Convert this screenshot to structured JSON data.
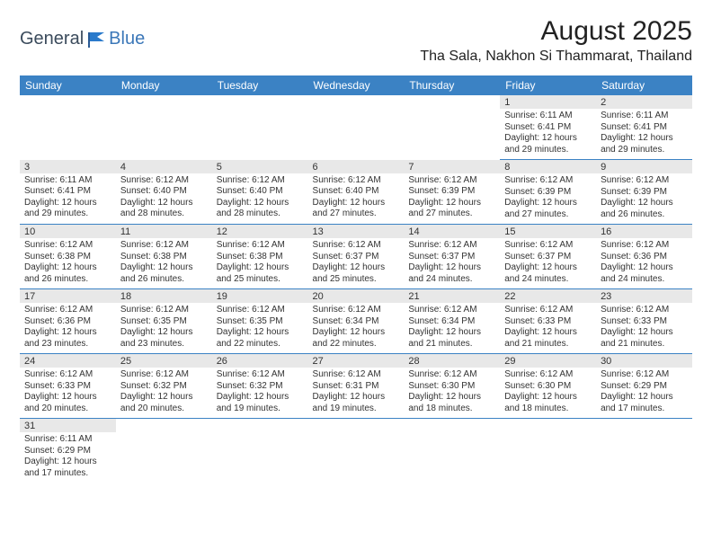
{
  "logo": {
    "part1": "General",
    "part2": "Blue"
  },
  "title": "August 2025",
  "location": "Tha Sala, Nakhon Si Thammarat, Thailand",
  "colors": {
    "header_bg": "#3b82c4",
    "header_text": "#ffffff",
    "daynum_bg": "#e8e8e8",
    "row_border": "#3b82c4",
    "text": "#333333",
    "logo_general": "#3b4b5c",
    "logo_blue": "#3b77b8"
  },
  "dayNames": [
    "Sunday",
    "Monday",
    "Tuesday",
    "Wednesday",
    "Thursday",
    "Friday",
    "Saturday"
  ],
  "weeks": [
    [
      null,
      null,
      null,
      null,
      null,
      {
        "n": "1",
        "sr": "6:11 AM",
        "ss": "6:41 PM",
        "dl": "12 hours and 29 minutes."
      },
      {
        "n": "2",
        "sr": "6:11 AM",
        "ss": "6:41 PM",
        "dl": "12 hours and 29 minutes."
      }
    ],
    [
      {
        "n": "3",
        "sr": "6:11 AM",
        "ss": "6:41 PM",
        "dl": "12 hours and 29 minutes."
      },
      {
        "n": "4",
        "sr": "6:12 AM",
        "ss": "6:40 PM",
        "dl": "12 hours and 28 minutes."
      },
      {
        "n": "5",
        "sr": "6:12 AM",
        "ss": "6:40 PM",
        "dl": "12 hours and 28 minutes."
      },
      {
        "n": "6",
        "sr": "6:12 AM",
        "ss": "6:40 PM",
        "dl": "12 hours and 27 minutes."
      },
      {
        "n": "7",
        "sr": "6:12 AM",
        "ss": "6:39 PM",
        "dl": "12 hours and 27 minutes."
      },
      {
        "n": "8",
        "sr": "6:12 AM",
        "ss": "6:39 PM",
        "dl": "12 hours and 27 minutes."
      },
      {
        "n": "9",
        "sr": "6:12 AM",
        "ss": "6:39 PM",
        "dl": "12 hours and 26 minutes."
      }
    ],
    [
      {
        "n": "10",
        "sr": "6:12 AM",
        "ss": "6:38 PM",
        "dl": "12 hours and 26 minutes."
      },
      {
        "n": "11",
        "sr": "6:12 AM",
        "ss": "6:38 PM",
        "dl": "12 hours and 26 minutes."
      },
      {
        "n": "12",
        "sr": "6:12 AM",
        "ss": "6:38 PM",
        "dl": "12 hours and 25 minutes."
      },
      {
        "n": "13",
        "sr": "6:12 AM",
        "ss": "6:37 PM",
        "dl": "12 hours and 25 minutes."
      },
      {
        "n": "14",
        "sr": "6:12 AM",
        "ss": "6:37 PM",
        "dl": "12 hours and 24 minutes."
      },
      {
        "n": "15",
        "sr": "6:12 AM",
        "ss": "6:37 PM",
        "dl": "12 hours and 24 minutes."
      },
      {
        "n": "16",
        "sr": "6:12 AM",
        "ss": "6:36 PM",
        "dl": "12 hours and 24 minutes."
      }
    ],
    [
      {
        "n": "17",
        "sr": "6:12 AM",
        "ss": "6:36 PM",
        "dl": "12 hours and 23 minutes."
      },
      {
        "n": "18",
        "sr": "6:12 AM",
        "ss": "6:35 PM",
        "dl": "12 hours and 23 minutes."
      },
      {
        "n": "19",
        "sr": "6:12 AM",
        "ss": "6:35 PM",
        "dl": "12 hours and 22 minutes."
      },
      {
        "n": "20",
        "sr": "6:12 AM",
        "ss": "6:34 PM",
        "dl": "12 hours and 22 minutes."
      },
      {
        "n": "21",
        "sr": "6:12 AM",
        "ss": "6:34 PM",
        "dl": "12 hours and 21 minutes."
      },
      {
        "n": "22",
        "sr": "6:12 AM",
        "ss": "6:33 PM",
        "dl": "12 hours and 21 minutes."
      },
      {
        "n": "23",
        "sr": "6:12 AM",
        "ss": "6:33 PM",
        "dl": "12 hours and 21 minutes."
      }
    ],
    [
      {
        "n": "24",
        "sr": "6:12 AM",
        "ss": "6:33 PM",
        "dl": "12 hours and 20 minutes."
      },
      {
        "n": "25",
        "sr": "6:12 AM",
        "ss": "6:32 PM",
        "dl": "12 hours and 20 minutes."
      },
      {
        "n": "26",
        "sr": "6:12 AM",
        "ss": "6:32 PM",
        "dl": "12 hours and 19 minutes."
      },
      {
        "n": "27",
        "sr": "6:12 AM",
        "ss": "6:31 PM",
        "dl": "12 hours and 19 minutes."
      },
      {
        "n": "28",
        "sr": "6:12 AM",
        "ss": "6:30 PM",
        "dl": "12 hours and 18 minutes."
      },
      {
        "n": "29",
        "sr": "6:12 AM",
        "ss": "6:30 PM",
        "dl": "12 hours and 18 minutes."
      },
      {
        "n": "30",
        "sr": "6:12 AM",
        "ss": "6:29 PM",
        "dl": "12 hours and 17 minutes."
      }
    ],
    [
      {
        "n": "31",
        "sr": "6:11 AM",
        "ss": "6:29 PM",
        "dl": "12 hours and 17 minutes."
      },
      null,
      null,
      null,
      null,
      null,
      null
    ]
  ],
  "labels": {
    "sunrise": "Sunrise:",
    "sunset": "Sunset:",
    "daylight": "Daylight:"
  }
}
